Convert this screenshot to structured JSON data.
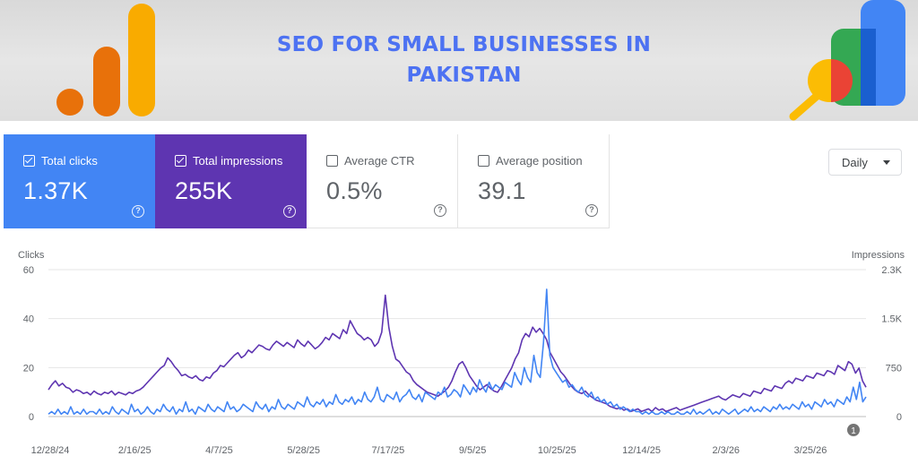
{
  "banner": {
    "title": "SEO FOR SMALL BUSINESSES IN PAKISTAN"
  },
  "metrics": [
    {
      "label": "Total clicks",
      "value": "1.37K",
      "checked": true,
      "color": "#4285f4"
    },
    {
      "label": "Total impressions",
      "value": "255K",
      "checked": true,
      "color": "#5e35b1"
    },
    {
      "label": "Average CTR",
      "value": "0.5%",
      "checked": false,
      "color": "#ffffff"
    },
    {
      "label": "Average position",
      "value": "39.1",
      "checked": false,
      "color": "#ffffff"
    }
  ],
  "period_select": {
    "value": "Daily"
  },
  "annotation_marker": "1",
  "chart_data": {
    "type": "line",
    "left_axis": {
      "label": "Clicks",
      "ticks": [
        "60",
        "40",
        "20",
        "0"
      ],
      "range": [
        0,
        60
      ]
    },
    "right_axis": {
      "label": "Impressions",
      "ticks": [
        "2.3K",
        "1.5K",
        "750",
        "0"
      ],
      "range": [
        0,
        2300
      ]
    },
    "x_tick_labels": [
      "12/28/24",
      "2/16/25",
      "4/7/25",
      "5/28/25",
      "7/17/25",
      "9/5/25",
      "10/25/25",
      "12/14/25",
      "2/3/26",
      "3/25/26"
    ],
    "grid": true,
    "series": [
      {
        "name": "Clicks",
        "axis": "left",
        "color": "#4285f4",
        "values": [
          1,
          2,
          1,
          3,
          1,
          2,
          1,
          4,
          1,
          2,
          1,
          3,
          1,
          2,
          2,
          1,
          3,
          1,
          2,
          1,
          4,
          2,
          1,
          3,
          2,
          1,
          5,
          2,
          3,
          1,
          2,
          4,
          2,
          1,
          3,
          2,
          5,
          3,
          2,
          4,
          1,
          3,
          2,
          6,
          2,
          3,
          1,
          4,
          3,
          2,
          5,
          3,
          2,
          4,
          3,
          2,
          6,
          3,
          4,
          2,
          3,
          5,
          4,
          3,
          2,
          6,
          4,
          3,
          5,
          2,
          4,
          3,
          7,
          4,
          3,
          5,
          4,
          3,
          6,
          5,
          4,
          8,
          5,
          4,
          6,
          5,
          7,
          4,
          6,
          5,
          9,
          6,
          5,
          7,
          6,
          8,
          5,
          7,
          6,
          10,
          7,
          6,
          8,
          12,
          7,
          6,
          9,
          8,
          7,
          10,
          6,
          8,
          9,
          11,
          8,
          7,
          9,
          6,
          10,
          9,
          8,
          7,
          10,
          9,
          12,
          8,
          9,
          11,
          10,
          8,
          13,
          11,
          9,
          12,
          10,
          15,
          12,
          10,
          14,
          11,
          13,
          12,
          11,
          14,
          13,
          12,
          18,
          15,
          13,
          20,
          16,
          14,
          25,
          18,
          16,
          30,
          52,
          25,
          20,
          18,
          16,
          14,
          15,
          12,
          13,
          11,
          10,
          12,
          9,
          8,
          10,
          7,
          8,
          6,
          7,
          5,
          6,
          4,
          5,
          3,
          4,
          3,
          2,
          3,
          2,
          2,
          1,
          2,
          1,
          2,
          1,
          1,
          2,
          1,
          2,
          1,
          1,
          2,
          1,
          1,
          2,
          1,
          3,
          1,
          2,
          1,
          2,
          3,
          1,
          2,
          1,
          3,
          2,
          1,
          2,
          3,
          1,
          2,
          3,
          2,
          4,
          2,
          3,
          2,
          4,
          3,
          2,
          4,
          3,
          5,
          3,
          4,
          3,
          5,
          4,
          3,
          6,
          4,
          5,
          3,
          6,
          5,
          4,
          7,
          5,
          6,
          4,
          7,
          6,
          5,
          8,
          6,
          12,
          7,
          14,
          6,
          8
        ]
      },
      {
        "name": "Impressions",
        "axis": "right",
        "color": "#5e35b1",
        "values": [
          420,
          500,
          560,
          480,
          520,
          460,
          440,
          380,
          420,
          400,
          360,
          380,
          340,
          400,
          360,
          340,
          380,
          360,
          400,
          340,
          380,
          360,
          340,
          380,
          360,
          400,
          420,
          460,
          520,
          580,
          640,
          700,
          760,
          800,
          920,
          860,
          780,
          720,
          640,
          660,
          620,
          600,
          640,
          580,
          560,
          620,
          600,
          680,
          720,
          800,
          780,
          840,
          900,
          960,
          1000,
          920,
          960,
          1040,
          1000,
          1060,
          1120,
          1100,
          1060,
          1040,
          1120,
          1180,
          1140,
          1100,
          1160,
          1120,
          1080,
          1200,
          1140,
          1100,
          1180,
          1120,
          1060,
          1100,
          1160,
          1240,
          1200,
          1300,
          1260,
          1220,
          1360,
          1300,
          1500,
          1400,
          1300,
          1260,
          1200,
          1240,
          1200,
          1100,
          1160,
          1320,
          1900,
          1400,
          1100,
          900,
          860,
          780,
          700,
          660,
          560,
          500,
          460,
          420,
          380,
          360,
          340,
          320,
          360,
          400,
          460,
          560,
          700,
          820,
          860,
          760,
          640,
          560,
          480,
          420,
          460,
          500,
          440,
          400,
          380,
          460,
          560,
          660,
          760,
          900,
          1000,
          1200,
          1300,
          1250,
          1400,
          1320,
          1380,
          1300,
          1200,
          1000,
          900,
          800,
          700,
          640,
          560,
          480,
          420,
          380,
          360,
          400,
          340,
          300,
          260,
          240,
          220,
          200,
          160,
          140,
          120,
          140,
          100,
          120,
          80,
          100,
          120,
          80,
          100,
          120,
          80,
          140,
          100,
          120,
          80,
          100,
          120,
          140,
          100,
          120,
          140,
          160,
          180,
          200,
          220,
          240,
          260,
          280,
          300,
          320,
          280,
          260,
          300,
          340,
          320,
          300,
          360,
          340,
          320,
          400,
          380,
          360,
          440,
          420,
          400,
          480,
          460,
          440,
          520,
          560,
          520,
          600,
          580,
          560,
          640,
          620,
          600,
          680,
          660,
          640,
          720,
          700,
          660,
          800,
          760,
          720,
          860,
          820,
          680,
          760,
          560,
          460
        ]
      }
    ]
  }
}
